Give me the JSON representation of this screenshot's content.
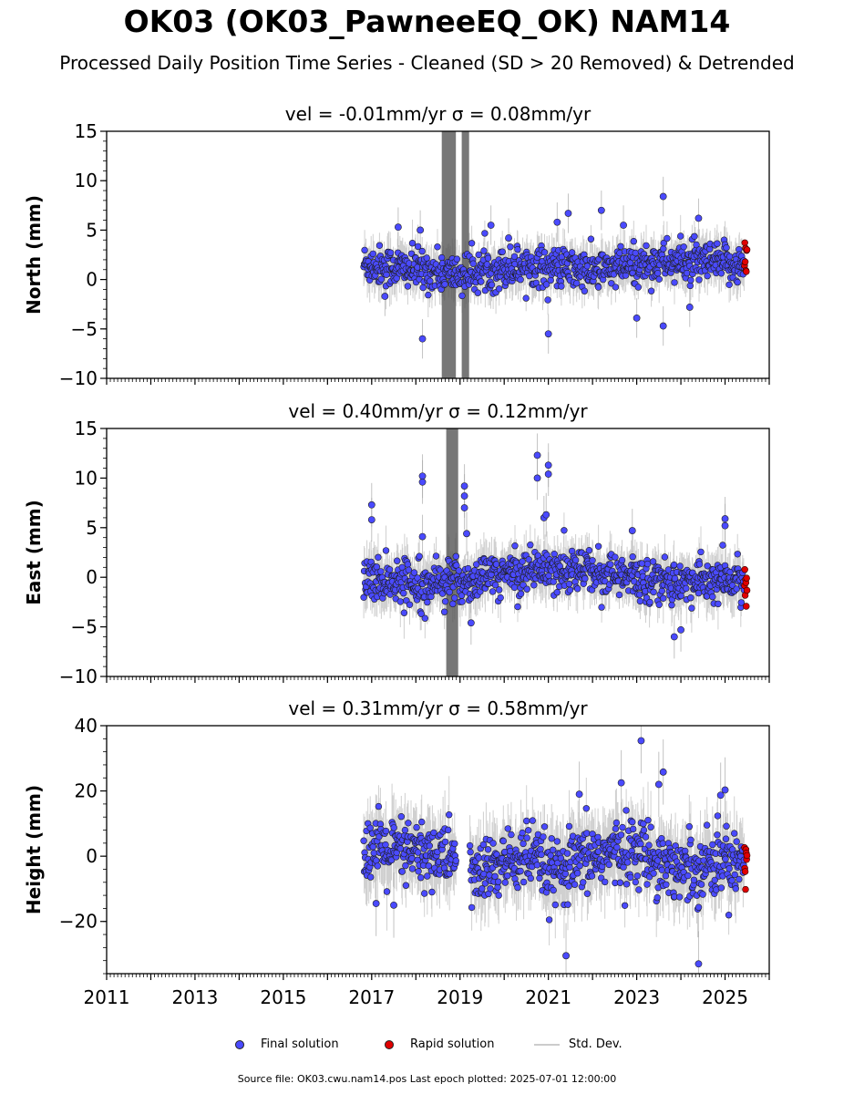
{
  "chart_data": {
    "type": "scatter",
    "title": "OK03 (OK03_PawneeEQ_OK) NAM14",
    "subtitle": "Processed Daily Position Time Series - Cleaned (SD > 20 Removed) & Detrended",
    "x_ticks": [
      "2011",
      "2013",
      "2015",
      "2017",
      "2019",
      "2021",
      "2023",
      "2025"
    ],
    "xlim": [
      2011,
      2026
    ],
    "data_start": 2016.82,
    "data_end": 2025.5,
    "rapid_start": 2025.44,
    "colors": {
      "final": "#4a4aff",
      "rapid": "#e00000",
      "std": "#aaaaaa",
      "dense_std": "#555555"
    },
    "panels": [
      {
        "ylabel": "North (mm)",
        "panel_title": "vel = -0.01mm/yr   σ = 0.08mm/yr",
        "ylim": [
          -10,
          15
        ],
        "yticks": [
          -10,
          -5,
          0,
          5,
          10,
          15
        ],
        "ytick_labels": [
          "−10",
          "−5",
          "0",
          "5",
          "10",
          "15"
        ],
        "trend": [
          [
            2016.8,
            1.6
          ],
          [
            2019.0,
            0.5
          ],
          [
            2020.5,
            1.5
          ],
          [
            2022.0,
            0.8
          ],
          [
            2023.5,
            1.8
          ],
          [
            2025.5,
            1.5
          ]
        ],
        "scatter_sd": 1.0,
        "gap": null,
        "rapid_range": [
          0.5,
          3.8
        ],
        "outliers": [
          [
            2017.3,
            -1.7
          ],
          [
            2018.15,
            -6.0
          ],
          [
            2018.1,
            5.0
          ],
          [
            2021.45,
            6.7
          ],
          [
            2023.6,
            8.4
          ],
          [
            2021.0,
            -5.5
          ],
          [
            2022.2,
            7.0
          ],
          [
            2023.0,
            -3.9
          ],
          [
            2023.6,
            -4.7
          ],
          [
            2024.4,
            6.2
          ],
          [
            2024.2,
            -2.8
          ],
          [
            2017.6,
            5.3
          ],
          [
            2021.2,
            5.8
          ],
          [
            2022.7,
            5.5
          ],
          [
            2020.1,
            4.2
          ],
          [
            2019.7,
            5.5
          ]
        ],
        "dense_bars": [
          [
            2018.6,
            2018.9,
            -10,
            15
          ],
          [
            2019.05,
            2019.2,
            -10,
            15
          ]
        ]
      },
      {
        "ylabel": "East (mm)",
        "panel_title": "vel = 0.40mm/yr   σ = 0.12mm/yr",
        "ylim": [
          -10,
          15
        ],
        "yticks": [
          -10,
          -5,
          0,
          5,
          10,
          15
        ],
        "ytick_labels": [
          "−10",
          "−5",
          "0",
          "5",
          "10",
          "15"
        ],
        "trend": [
          [
            2016.8,
            -0.3
          ],
          [
            2019.0,
            -0.5
          ],
          [
            2020.0,
            0.4
          ],
          [
            2021.0,
            1.0
          ],
          [
            2022.0,
            0.6
          ],
          [
            2023.0,
            -0.2
          ],
          [
            2024.0,
            -0.5
          ],
          [
            2025.5,
            -0.4
          ]
        ],
        "scatter_sd": 1.1,
        "gap": null,
        "rapid_range": [
          -3.5,
          1.0
        ],
        "outliers": [
          [
            2017.0,
            7.3
          ],
          [
            2017.0,
            5.8
          ],
          [
            2018.15,
            10.2
          ],
          [
            2018.15,
            9.6
          ],
          [
            2018.15,
            4.1
          ],
          [
            2019.1,
            9.2
          ],
          [
            2019.1,
            8.2
          ],
          [
            2019.1,
            7.0
          ],
          [
            2019.25,
            -4.6
          ],
          [
            2020.75,
            12.3
          ],
          [
            2020.75,
            10.0
          ],
          [
            2020.9,
            6.0
          ],
          [
            2021.0,
            11.3
          ],
          [
            2021.0,
            10.4
          ],
          [
            2020.95,
            6.3
          ],
          [
            2019.15,
            4.4
          ],
          [
            2023.85,
            -6.0
          ],
          [
            2024.0,
            -5.3
          ],
          [
            2025.0,
            5.9
          ],
          [
            2025.0,
            5.2
          ],
          [
            2022.9,
            4.7
          ]
        ],
        "dense_bars": [
          [
            2018.7,
            2018.95,
            -10,
            15
          ]
        ]
      },
      {
        "ylabel": "Height (mm)",
        "panel_title": "vel = 0.31mm/yr   σ = 0.58mm/yr",
        "ylim": [
          -36,
          40
        ],
        "yticks": [
          -20,
          0,
          20,
          40
        ],
        "ytick_labels": [
          "−20",
          "0",
          "20",
          "40"
        ],
        "trend": [
          [
            2016.8,
            2
          ],
          [
            2019.0,
            0
          ],
          [
            2019.3,
            -6
          ],
          [
            2020.5,
            0
          ],
          [
            2021.2,
            -6
          ],
          [
            2022.0,
            0
          ],
          [
            2023.0,
            2
          ],
          [
            2024.0,
            -4
          ],
          [
            2025.5,
            0
          ]
        ],
        "scatter_sd": 5.0,
        "gap": [
          2018.92,
          2019.22
        ],
        "rapid_range": [
          -10.5,
          6.0
        ],
        "outliers": [
          [
            2023.1,
            35.4
          ],
          [
            2023.6,
            25.8
          ],
          [
            2023.5,
            22.0
          ],
          [
            2022.65,
            22.5
          ],
          [
            2021.4,
            -30.5
          ],
          [
            2024.4,
            -33.0
          ],
          [
            2021.7,
            19.0
          ],
          [
            2025.0,
            20.3
          ],
          [
            2024.9,
            18.7
          ],
          [
            2017.1,
            -14.5
          ],
          [
            2017.5,
            -15.0
          ]
        ],
        "dense_bars": []
      }
    ],
    "legend": {
      "final": "Final solution",
      "rapid": "Rapid solution",
      "std": "Std. Dev."
    }
  },
  "footer": "Source file: OK03.cwu.nam14.pos  Last epoch plotted: 2025-07-01 12:00:00"
}
